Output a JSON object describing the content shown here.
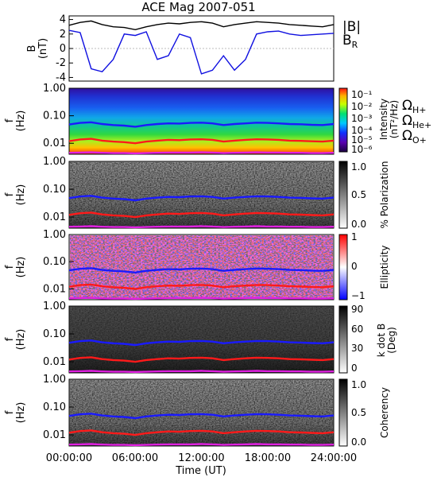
{
  "title": "ACE Mag 2007-051",
  "colors": {
    "B_total": "#000000",
    "B_R": "#1010e0",
    "H_plus": "#1a1aff",
    "He_plus": "#ff1a1a",
    "O_plus": "#e020e0"
  },
  "icons": [
    "omega-symbol"
  ],
  "chart_data": [
    {
      "type": "line",
      "panel": "magnetic-field",
      "ylabel": "B",
      "yunit": "(nT)",
      "ylim": [
        -4.5,
        4.5
      ],
      "yticks": [
        "4",
        "2",
        "0",
        "-2",
        "-4"
      ],
      "xlim": [
        0,
        24
      ],
      "legend": {
        "total": "|B|",
        "radial": "B",
        "radial_sub": "R"
      },
      "series": [
        {
          "name": "|B|",
          "color": "#000000",
          "x": [
            0,
            1,
            2,
            3,
            4,
            5,
            6,
            7,
            8,
            9,
            10,
            11,
            12,
            13,
            14,
            15,
            16,
            17,
            18,
            19,
            20,
            21,
            22,
            23,
            24
          ],
          "values": [
            3.2,
            3.6,
            3.8,
            3.3,
            3.0,
            2.9,
            2.6,
            3.0,
            3.3,
            3.5,
            3.4,
            3.6,
            3.7,
            3.5,
            3.0,
            3.3,
            3.5,
            3.7,
            3.6,
            3.5,
            3.3,
            3.2,
            3.1,
            3.0,
            3.3
          ]
        },
        {
          "name": "B_R",
          "color": "#1010e0",
          "x": [
            0,
            1,
            2,
            3,
            4,
            5,
            6,
            7,
            8,
            9,
            10,
            11,
            12,
            13,
            14,
            15,
            16,
            17,
            18,
            19,
            20,
            21,
            22,
            23,
            24
          ],
          "values": [
            2.5,
            2.2,
            -2.8,
            -3.2,
            -1.5,
            2.0,
            1.8,
            2.3,
            -1.5,
            -1.0,
            2.0,
            1.5,
            -3.5,
            -3.0,
            -1.0,
            -3.0,
            -1.5,
            2.0,
            2.3,
            2.4,
            2.0,
            1.8,
            1.9,
            2.0,
            2.1
          ]
        }
      ]
    },
    {
      "type": "heatmap",
      "panel": "intensity",
      "ylabel": "f",
      "yunit": "(Hz)",
      "yscale": "log",
      "ylim": [
        0.004,
        1.0
      ],
      "yticks": [
        "1.00",
        "0.10",
        "0.01"
      ],
      "colorbar": {
        "label": "Intensity",
        "unit": "(nT²/Hz)",
        "ticks": [
          "10⁻¹",
          "10⁻²",
          "10⁻³",
          "10⁻⁴",
          "10⁻⁵",
          "10⁻⁶"
        ]
      },
      "overlays": [
        "H+",
        "He+",
        "O+"
      ]
    },
    {
      "type": "heatmap",
      "panel": "polarization",
      "ylabel": "f",
      "yunit": "(Hz)",
      "yscale": "log",
      "ylim": [
        0.004,
        1.0
      ],
      "yticks": [
        "1.00",
        "0.10",
        "0.01"
      ],
      "colorbar": {
        "label": "% Polarization",
        "ticks": [
          "1.0",
          "0.5",
          "0.0"
        ]
      },
      "overlays": [
        "H+",
        "He+",
        "O+"
      ]
    },
    {
      "type": "heatmap",
      "panel": "ellipticity",
      "ylabel": "f",
      "yunit": "(Hz)",
      "yscale": "log",
      "ylim": [
        0.004,
        1.0
      ],
      "yticks": [
        "1.00",
        "0.10",
        "0.01"
      ],
      "colorbar": {
        "label": "Ellipticity",
        "ticks": [
          "1",
          "0",
          "−1"
        ]
      },
      "overlays": [
        "H+",
        "He+",
        "O+"
      ]
    },
    {
      "type": "heatmap",
      "panel": "k-dot-b",
      "ylabel": "f",
      "yunit": "(Hz)",
      "yscale": "log",
      "ylim": [
        0.004,
        1.0
      ],
      "yticks": [
        "1.00",
        "0.10",
        "0.01"
      ],
      "colorbar": {
        "label": "k dot B",
        "unit": "(Deg)",
        "ticks": [
          "90",
          "60",
          "30",
          "0"
        ]
      },
      "overlays": [
        "H+",
        "He+",
        "O+"
      ]
    },
    {
      "type": "heatmap",
      "panel": "coherency",
      "ylabel": "f",
      "yunit": "(Hz)",
      "yscale": "log",
      "ylim": [
        0.004,
        1.0
      ],
      "yticks": [
        "1.00",
        "0.10",
        "0.01"
      ],
      "colorbar": {
        "label": "Coherency",
        "ticks": [
          "1.0",
          "0.5",
          "0.0"
        ]
      },
      "overlays": [
        "H+",
        "He+",
        "O+"
      ]
    }
  ],
  "gyrofrequency_lines": {
    "x": [
      0,
      1,
      2,
      3,
      4,
      5,
      6,
      7,
      8,
      9,
      10,
      11,
      12,
      13,
      14,
      15,
      16,
      17,
      18,
      19,
      20,
      21,
      22,
      23,
      24
    ],
    "series": [
      {
        "name": "H+",
        "color": "#1a1aff",
        "values": [
          0.048,
          0.055,
          0.058,
          0.05,
          0.046,
          0.044,
          0.04,
          0.046,
          0.05,
          0.053,
          0.052,
          0.055,
          0.056,
          0.053,
          0.046,
          0.05,
          0.053,
          0.056,
          0.055,
          0.053,
          0.05,
          0.049,
          0.047,
          0.046,
          0.05
        ]
      },
      {
        "name": "He+",
        "color": "#ff1a1a",
        "values": [
          0.012,
          0.0138,
          0.0145,
          0.0125,
          0.0115,
          0.011,
          0.01,
          0.0115,
          0.0125,
          0.0133,
          0.013,
          0.0138,
          0.014,
          0.0133,
          0.0115,
          0.0125,
          0.0133,
          0.014,
          0.0138,
          0.0133,
          0.0125,
          0.0122,
          0.0118,
          0.0115,
          0.0125
        ]
      },
      {
        "name": "O+",
        "color": "#e020e0",
        "values": [
          0.0045,
          0.0046,
          0.0047,
          0.0045,
          0.0044,
          0.0044,
          0.0043,
          0.0044,
          0.0045,
          0.0046,
          0.0046,
          0.0046,
          0.0047,
          0.0046,
          0.0044,
          0.0045,
          0.0046,
          0.0047,
          0.0046,
          0.0046,
          0.0045,
          0.0045,
          0.0044,
          0.0044,
          0.0045
        ]
      }
    ]
  },
  "species_legend": [
    {
      "symbol": "Ω",
      "sub": "H+",
      "color": "#1a1aff"
    },
    {
      "symbol": "Ω",
      "sub": "He+",
      "color": "#ff1a1a"
    },
    {
      "symbol": "Ω",
      "sub": "O+",
      "color": "#e020e0"
    }
  ],
  "xaxis": {
    "label": "Time (UT)",
    "xlim": [
      0,
      24
    ],
    "ticks": [
      {
        "value": 0,
        "label": "00:00:00"
      },
      {
        "value": 6,
        "label": "06:00:00"
      },
      {
        "value": 12,
        "label": "12:00:00"
      },
      {
        "value": 18,
        "label": "18:00:00"
      },
      {
        "value": 24,
        "label": "24:00:00"
      }
    ]
  }
}
